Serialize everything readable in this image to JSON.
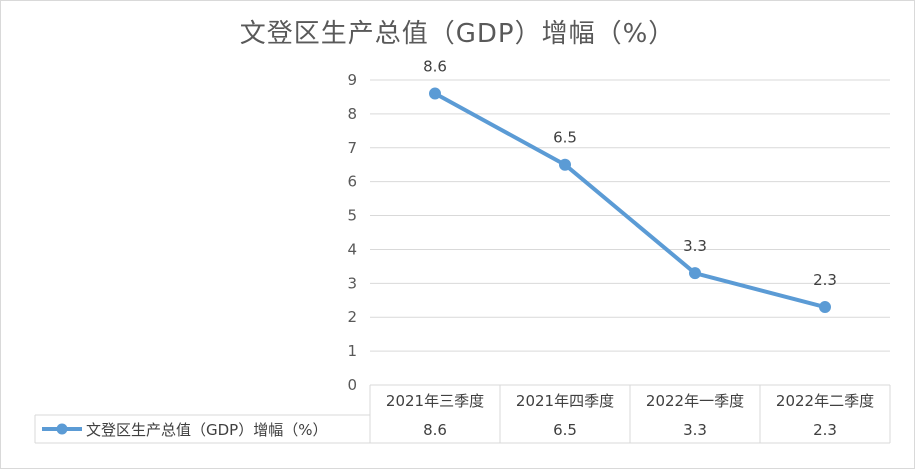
{
  "chart_data": {
    "type": "line",
    "title": "文登区生产总值（GDP）增幅（%）",
    "categories": [
      "2021年三季度",
      "2021年四季度",
      "2022年一季度",
      "2022年二季度"
    ],
    "series": [
      {
        "name": "文登区生产总值（GDP）增幅（%）",
        "values": [
          8.6,
          6.5,
          3.3,
          2.3
        ]
      }
    ],
    "data_labels": [
      "8.6",
      "6.5",
      "3.3",
      "2.3"
    ],
    "table_values": [
      "8.6",
      "6.5",
      "3.3",
      "2.3"
    ],
    "ylim": [
      0,
      9
    ],
    "yticks": [
      "0",
      "1",
      "2",
      "3",
      "4",
      "5",
      "6",
      "7",
      "8",
      "9"
    ],
    "grid": true,
    "legend": "data-table-left",
    "colors": {
      "line": "#5b9bd5",
      "grid": "#d9d9d9",
      "text": "#595959"
    }
  }
}
